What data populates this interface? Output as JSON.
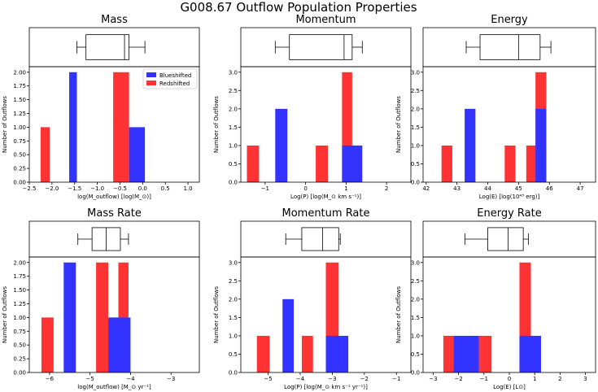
{
  "figure": {
    "title": "G008.67 Outflow Population Properties"
  },
  "chart_data": [
    {
      "type": "bar",
      "title": "Mass",
      "xlabel": "log(M_outflow) [log(M_⊙)]",
      "ylabel": "Number of Outflows",
      "xlim": [
        -2.5,
        1.25
      ],
      "ylim": [
        0,
        2.1
      ],
      "xticks": [
        -2.5,
        -2.0,
        -1.5,
        -1.0,
        -0.5,
        0.0,
        0.5,
        1.0
      ],
      "xtick_labels": [
        "−2.5",
        "−2.0",
        "−1.5",
        "−1.0",
        "−0.5",
        "0.0",
        "0.5",
        "1.0"
      ],
      "yticks": [
        0,
        0.25,
        0.5,
        0.75,
        1.0,
        1.25,
        1.5,
        1.75,
        2.0
      ],
      "ytick_labels": [
        "0.00",
        "0.25",
        "0.50",
        "0.75",
        "1.00",
        "1.25",
        "1.50",
        "1.75",
        "2.00"
      ],
      "legend": [
        "Blueshifted",
        "Redshifted"
      ],
      "legend_position": "top-right",
      "series": [
        {
          "name": "Blueshifted",
          "color": "#3333ff",
          "bars": [
            {
              "x0": -1.62,
              "x1": -1.45,
              "value": 2
            },
            {
              "x0": -0.3,
              "x1": 0.05,
              "value": 1
            }
          ]
        },
        {
          "name": "Redshifted",
          "color": "#ff3333",
          "bars": [
            {
              "x0": -2.25,
              "x1": -2.05,
              "value": 1
            },
            {
              "x0": -0.65,
              "x1": -0.3,
              "value": 2
            }
          ]
        }
      ],
      "boxplot": {
        "whisker_low": -1.45,
        "q1": -1.25,
        "median": -0.4,
        "q3": -0.3,
        "whisker_high": 0.05
      }
    },
    {
      "type": "bar",
      "title": "Momentum",
      "xlabel": "Log(P) [log(M_⊙ km s⁻¹)]",
      "ylabel": "Number of Outflows",
      "xlim": [
        -1.6,
        2.6
      ],
      "ylim": [
        0,
        3.15
      ],
      "xticks": [
        -1,
        0,
        1,
        2
      ],
      "xtick_labels": [
        "−1",
        "0",
        "1",
        "2"
      ],
      "yticks": [
        0,
        0.5,
        1.0,
        1.5,
        2.0,
        2.5,
        3.0
      ],
      "ytick_labels": [
        "0.0",
        "0.5",
        "1.0",
        "1.5",
        "2.0",
        "2.5",
        "3.0"
      ],
      "series": [
        {
          "name": "Blueshifted",
          "color": "#3333ff",
          "bars": [
            {
              "x0": -0.75,
              "x1": -0.45,
              "value": 2
            },
            {
              "x0": 0.9,
              "x1": 1.4,
              "value": 1
            }
          ]
        },
        {
          "name": "Redshifted",
          "color": "#ff3333",
          "bars": [
            {
              "x0": -1.45,
              "x1": -1.15,
              "value": 1
            },
            {
              "x0": 0.25,
              "x1": 0.55,
              "value": 1
            },
            {
              "x0": 0.9,
              "x1": 1.15,
              "value": 3
            }
          ]
        }
      ],
      "boxplot": {
        "whisker_low": -0.75,
        "q1": -0.4,
        "median": 0.95,
        "q3": 1.15,
        "whisker_high": 1.4
      }
    },
    {
      "type": "bar",
      "title": "Energy",
      "xlabel": "Log(E) [log(10⁴³ erg)]",
      "ylabel": "Number of Outflows",
      "xlim": [
        41.9,
        47.5
      ],
      "ylim": [
        0,
        3.15
      ],
      "xticks": [
        42,
        43,
        44,
        45,
        46,
        47
      ],
      "xtick_labels": [
        "42",
        "43",
        "44",
        "45",
        "46",
        "47"
      ],
      "yticks": [
        0,
        0.5,
        1.0,
        1.5,
        2.0,
        2.5,
        3.0
      ],
      "ytick_labels": [
        "0.0",
        "0.5",
        "1.0",
        "1.5",
        "2.0",
        "2.5",
        "3.0"
      ],
      "series": [
        {
          "name": "Blueshifted",
          "color": "#3333ff",
          "bars": [
            {
              "x0": 43.25,
              "x1": 43.6,
              "value": 2
            },
            {
              "x0": 45.55,
              "x1": 45.9,
              "value": 2
            }
          ]
        },
        {
          "name": "Redshifted",
          "color": "#ff3333",
          "bars": [
            {
              "x0": 42.5,
              "x1": 42.85,
              "value": 1
            },
            {
              "x0": 44.55,
              "x1": 44.9,
              "value": 1
            },
            {
              "x0": 45.25,
              "x1": 45.6,
              "value": 1
            },
            {
              "x0": 45.55,
              "x1": 45.9,
              "value": 3
            }
          ]
        }
      ],
      "boxplot": {
        "whisker_low": 43.3,
        "q1": 43.75,
        "median": 45.0,
        "q3": 45.7,
        "whisker_high": 46.05
      }
    },
    {
      "type": "bar",
      "title": "Mass Rate",
      "xlabel": "log(M_outflow) [M_⊙ yr⁻¹]",
      "ylabel": "Number of Outflows",
      "xlim": [
        -6.5,
        -2.3
      ],
      "ylim": [
        0,
        2.1
      ],
      "xticks": [
        -6,
        -5,
        -4,
        -3
      ],
      "xtick_labels": [
        "−6",
        "−5",
        "−4",
        "−3"
      ],
      "yticks": [
        0,
        0.25,
        0.5,
        0.75,
        1.0,
        1.25,
        1.5,
        1.75,
        2.0
      ],
      "ytick_labels": [
        "0.00",
        "0.25",
        "0.50",
        "0.75",
        "1.00",
        "1.25",
        "1.50",
        "1.75",
        "2.00"
      ],
      "series": [
        {
          "name": "Blueshifted",
          "color": "#3333ff",
          "bars": [
            {
              "x0": -5.65,
              "x1": -5.35,
              "value": 2
            },
            {
              "x0": -4.55,
              "x1": -4.0,
              "value": 1
            }
          ]
        },
        {
          "name": "Redshifted",
          "color": "#ff3333",
          "bars": [
            {
              "x0": -6.2,
              "x1": -5.9,
              "value": 1
            },
            {
              "x0": -4.85,
              "x1": -4.55,
              "value": 2
            },
            {
              "x0": -4.3,
              "x1": -4.05,
              "value": 2
            }
          ]
        }
      ],
      "boxplot": {
        "whisker_low": -5.3,
        "q1": -4.95,
        "median": -4.6,
        "q3": -4.25,
        "whisker_high": -4.05
      }
    },
    {
      "type": "bar",
      "title": "Momentum Rate",
      "xlabel": "Log(P) [log(M_⊙ km s⁻¹ yr⁻¹)]",
      "ylabel": "Number of Outflows",
      "xlim": [
        -5.85,
        -0.55
      ],
      "ylim": [
        0,
        3.15
      ],
      "xticks": [
        -5,
        -4,
        -3,
        -2,
        -1
      ],
      "xtick_labels": [
        "−5",
        "−4",
        "−3",
        "−2",
        "−1"
      ],
      "yticks": [
        0,
        0.5,
        1.0,
        1.5,
        2.0,
        2.5,
        3.0
      ],
      "ytick_labels": [
        "0.0",
        "0.5",
        "1.0",
        "1.5",
        "2.0",
        "2.5",
        "3.0"
      ],
      "series": [
        {
          "name": "Blueshifted",
          "color": "#3333ff",
          "bars": [
            {
              "x0": -4.55,
              "x1": -4.2,
              "value": 2
            },
            {
              "x0": -3.2,
              "x1": -2.5,
              "value": 1
            }
          ]
        },
        {
          "name": "Redshifted",
          "color": "#ff3333",
          "bars": [
            {
              "x0": -5.35,
              "x1": -4.95,
              "value": 1
            },
            {
              "x0": -3.95,
              "x1": -3.6,
              "value": 1
            },
            {
              "x0": -3.2,
              "x1": -2.8,
              "value": 3
            }
          ]
        }
      ],
      "boxplot": {
        "whisker_low": -4.45,
        "q1": -3.95,
        "median": -3.3,
        "q3": -2.8,
        "whisker_high": -2.75
      }
    },
    {
      "type": "bar",
      "title": "Energy Rate",
      "xlabel": "Log(E) [L⊙]",
      "ylabel": "Number of Outflows",
      "xlim": [
        -3.4,
        3.4
      ],
      "ylim": [
        0,
        3.15
      ],
      "xticks": [
        -3,
        -2,
        -1,
        0,
        1,
        2,
        3
      ],
      "xtick_labels": [
        "−3",
        "−2",
        "−1",
        "0",
        "1",
        "2",
        "3"
      ],
      "yticks": [
        0,
        0.5,
        1.0,
        1.5,
        2.0,
        2.5,
        3.0
      ],
      "ytick_labels": [
        "0.0",
        "0.5",
        "1.0",
        "1.5",
        "2.0",
        "2.5",
        "3.0"
      ],
      "series": [
        {
          "name": "Blueshifted",
          "color": "#3333ff",
          "bars": [
            {
              "x0": -2.2,
              "x1": -1.2,
              "value": 1
            },
            {
              "x0": 0.4,
              "x1": 1.25,
              "value": 1
            }
          ]
        },
        {
          "name": "Redshifted",
          "color": "#ff3333",
          "bars": [
            {
              "x0": -2.6,
              "x1": -2.2,
              "value": 1
            },
            {
              "x0": -1.2,
              "x1": -0.7,
              "value": 1
            },
            {
              "x0": 0.4,
              "x1": 0.85,
              "value": 3
            }
          ]
        }
      ],
      "boxplot": {
        "whisker_low": -1.75,
        "q1": -0.85,
        "median": -0.05,
        "q3": 0.55,
        "whisker_high": 0.75
      }
    }
  ]
}
